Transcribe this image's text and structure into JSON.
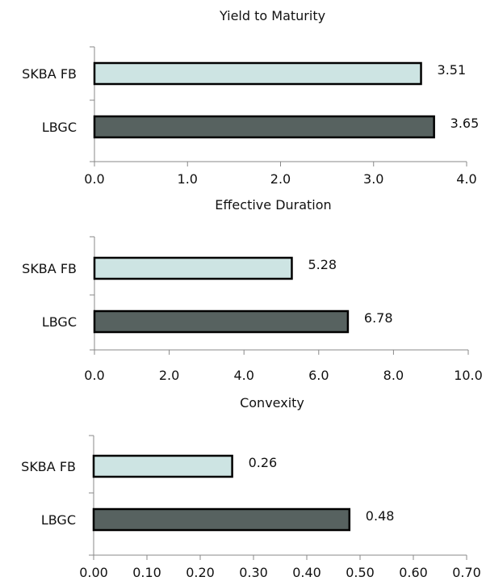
{
  "chart_data": [
    {
      "type": "bar",
      "orientation": "horizontal",
      "title": "Yield to Maturity",
      "categories": [
        "SKBA FB",
        "LBGC"
      ],
      "values": [
        3.51,
        3.65
      ],
      "value_labels": [
        "3.51",
        "3.65"
      ],
      "colors": [
        "#cde4e3",
        "#576260"
      ],
      "xlim": [
        0,
        4
      ],
      "xticks": [
        0,
        1,
        2,
        3,
        4
      ],
      "xtick_labels": [
        "0.0",
        "1.0",
        "2.0",
        "3.0",
        "4.0"
      ],
      "grid": false,
      "legend": "none"
    },
    {
      "type": "bar",
      "orientation": "horizontal",
      "title": "Effective Duration",
      "categories": [
        "SKBA FB",
        "LBGC"
      ],
      "values": [
        5.28,
        6.78
      ],
      "value_labels": [
        "5.28",
        "6.78"
      ],
      "colors": [
        "#cde4e3",
        "#576260"
      ],
      "xlim": [
        0,
        10
      ],
      "xticks": [
        0,
        2,
        4,
        6,
        8,
        10
      ],
      "xtick_labels": [
        "0.0",
        "2.0",
        "4.0",
        "6.0",
        "8.0",
        "10.0"
      ],
      "grid": false,
      "legend": "none"
    },
    {
      "type": "bar",
      "orientation": "horizontal",
      "title": "Convexity",
      "categories": [
        "SKBA FB",
        "LBGC"
      ],
      "values": [
        0.26,
        0.48
      ],
      "value_labels": [
        "0.26",
        "0.48"
      ],
      "colors": [
        "#cde4e3",
        "#576260"
      ],
      "xlim": [
        0,
        0.7
      ],
      "xticks": [
        0,
        0.1,
        0.2,
        0.3,
        0.4,
        0.5,
        0.6,
        0.7
      ],
      "xtick_labels": [
        "0.00",
        "0.10",
        "0.20",
        "0.30",
        "0.40",
        "0.50",
        "0.60",
        "0.70"
      ],
      "grid": false,
      "legend": "none"
    }
  ]
}
